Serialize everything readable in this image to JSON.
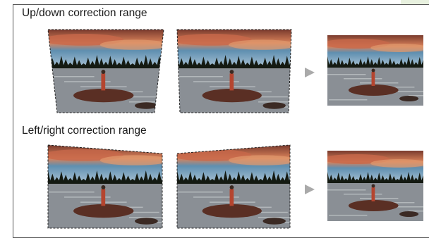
{
  "figure": {
    "updown": {
      "title": "Up/down correction range",
      "panels": [
        "top-narrowed-keystone",
        "bottom-narrowed-keystone",
        "corrected-result"
      ]
    },
    "leftright": {
      "title": "Left/right correction range",
      "panels": [
        "right-side-shortened",
        "left-side-shortened",
        "corrected-result"
      ]
    },
    "arrow_icon": "right-triangle-arrow-icon",
    "photo_subject": "person standing on a rock in a lake at sunset"
  },
  "colors": {
    "frame_border": "#555555",
    "sidebar": "#e8f1df",
    "arrow": "#aaaaaa",
    "sky_top": "#7a3b2e",
    "sky_glow": "#d9825a",
    "sky_blue": "#5f8fb0",
    "water": "#8a8f95",
    "trees": "#141a12",
    "rock": "#5a2f24"
  }
}
